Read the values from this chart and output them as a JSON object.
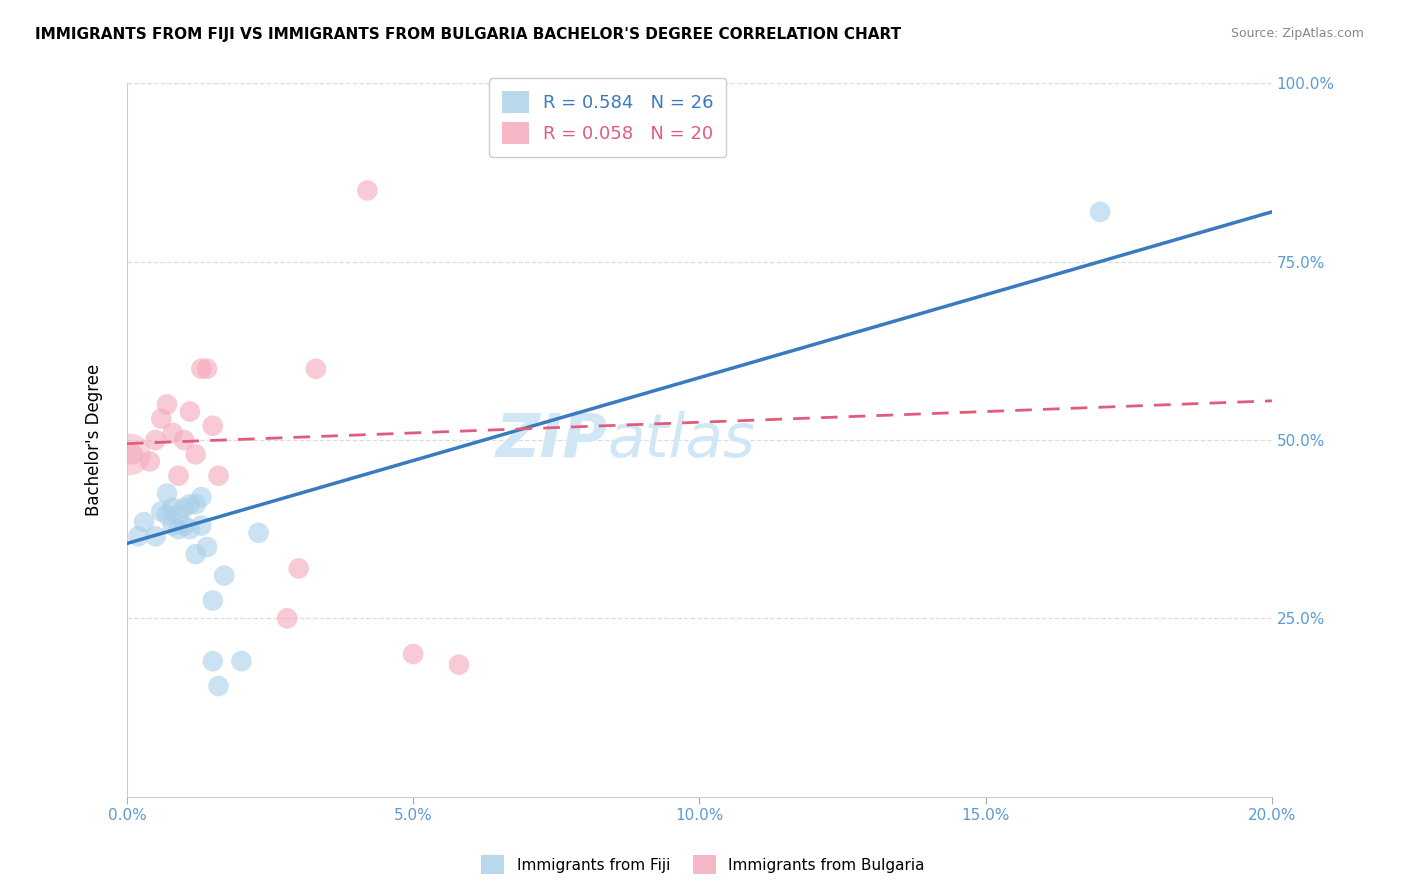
{
  "title": "IMMIGRANTS FROM FIJI VS IMMIGRANTS FROM BULGARIA BACHELOR'S DEGREE CORRELATION CHART",
  "source": "Source: ZipAtlas.com",
  "ylabel": "Bachelor's Degree",
  "y_ticks": [
    0.0,
    0.25,
    0.5,
    0.75,
    1.0
  ],
  "y_tick_labels": [
    "",
    "25.0%",
    "50.0%",
    "75.0%",
    "100.0%"
  ],
  "xlim": [
    0.0,
    0.2
  ],
  "ylim": [
    0.0,
    1.0
  ],
  "fiji_R": 0.584,
  "fiji_N": 26,
  "bulgaria_R": 0.058,
  "bulgaria_N": 20,
  "fiji_color": "#a8cfe8",
  "bulgaria_color": "#f4a7b9",
  "fiji_line_color": "#3a7abf",
  "bulgaria_line_color": "#e05c7a",
  "watermark_color": "#d0e8f5",
  "fiji_scatter_x": [
    0.002,
    0.003,
    0.005,
    0.006,
    0.007,
    0.007,
    0.008,
    0.008,
    0.009,
    0.009,
    0.01,
    0.01,
    0.011,
    0.011,
    0.012,
    0.012,
    0.013,
    0.013,
    0.014,
    0.015,
    0.015,
    0.016,
    0.017,
    0.02,
    0.023,
    0.17
  ],
  "fiji_scatter_y": [
    0.365,
    0.385,
    0.365,
    0.4,
    0.395,
    0.425,
    0.38,
    0.405,
    0.375,
    0.395,
    0.38,
    0.405,
    0.375,
    0.41,
    0.34,
    0.41,
    0.38,
    0.42,
    0.35,
    0.275,
    0.19,
    0.155,
    0.31,
    0.19,
    0.37,
    0.82
  ],
  "bulgaria_scatter_x": [
    0.001,
    0.004,
    0.005,
    0.006,
    0.007,
    0.008,
    0.009,
    0.01,
    0.011,
    0.012,
    0.013,
    0.014,
    0.015,
    0.016,
    0.028,
    0.03,
    0.033,
    0.042,
    0.05,
    0.058
  ],
  "bulgaria_scatter_y": [
    0.48,
    0.47,
    0.5,
    0.53,
    0.55,
    0.51,
    0.45,
    0.5,
    0.54,
    0.48,
    0.6,
    0.6,
    0.52,
    0.45,
    0.25,
    0.32,
    0.6,
    0.85,
    0.2,
    0.185
  ],
  "fiji_trend_x": [
    0.0,
    0.2
  ],
  "fiji_trend_y": [
    0.355,
    0.82
  ],
  "bulgaria_trend_x": [
    0.0,
    0.2
  ],
  "bulgaria_trend_y": [
    0.495,
    0.555
  ],
  "legend_fiji_label": "R = 0.584   N = 26",
  "legend_bulgaria_label": "R = 0.058   N = 20",
  "bottom_legend_fiji": "Immigrants from Fiji",
  "bottom_legend_bulgaria": "Immigrants from Bulgaria",
  "x_tick_positions": [
    0.0,
    0.05,
    0.1,
    0.15,
    0.2
  ],
  "x_tick_labels": [
    "0.0%",
    "5.0%",
    "10.0%",
    "15.0%",
    "20.0%"
  ],
  "tick_color": "#5b9bd5",
  "grid_color": "#dddddd",
  "spine_color": "#cccccc"
}
